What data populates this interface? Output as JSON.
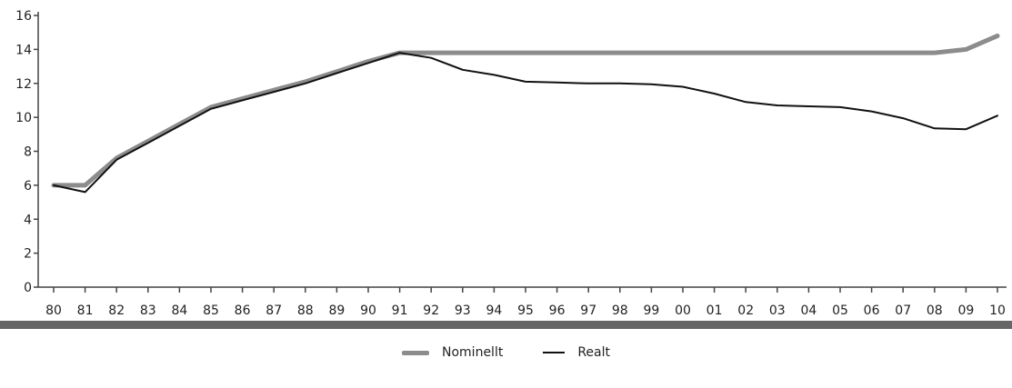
{
  "chart_data": {
    "type": "line",
    "x": [
      "80",
      "81",
      "82",
      "83",
      "84",
      "85",
      "86",
      "87",
      "88",
      "89",
      "90",
      "91",
      "92",
      "93",
      "94",
      "95",
      "96",
      "97",
      "98",
      "99",
      "00",
      "01",
      "02",
      "03",
      "04",
      "05",
      "06",
      "07",
      "08",
      "09",
      "10"
    ],
    "series": [
      {
        "name": "Nominellt",
        "color": "#8c8c8c",
        "values": [
          6.0,
          6.0,
          7.6,
          8.6,
          9.6,
          10.6,
          11.1,
          11.6,
          12.1,
          12.7,
          13.3,
          13.8,
          13.8,
          13.8,
          13.8,
          13.8,
          13.8,
          13.8,
          13.8,
          13.8,
          13.8,
          13.8,
          13.8,
          13.8,
          13.8,
          13.8,
          13.8,
          13.8,
          13.8,
          14.0,
          14.8
        ]
      },
      {
        "name": "Realt",
        "color": "#111111",
        "values": [
          6.0,
          5.6,
          7.5,
          8.5,
          9.5,
          10.5,
          11.0,
          11.5,
          12.0,
          12.6,
          13.2,
          13.8,
          13.5,
          12.8,
          12.5,
          12.1,
          12.05,
          12.0,
          12.0,
          11.95,
          11.8,
          11.4,
          10.9,
          10.7,
          10.65,
          10.6,
          10.35,
          9.95,
          9.35,
          9.3,
          10.1
        ]
      }
    ],
    "ylim": [
      0,
      16
    ],
    "yticks": [
      "0",
      "2",
      "4",
      "6",
      "8",
      "10",
      "12",
      "14",
      "16"
    ],
    "grid": false,
    "legend_position": "bottom-center"
  }
}
